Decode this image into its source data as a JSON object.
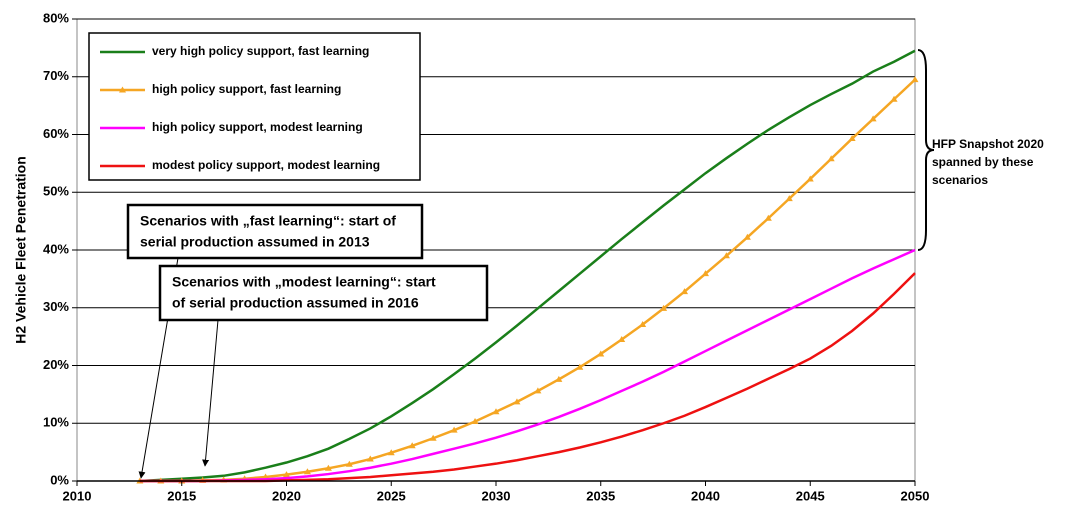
{
  "chart_data": {
    "type": "line",
    "y_label": "H2 Vehicle Fleet Penetration",
    "x": [
      2013,
      2014,
      2015,
      2016,
      2017,
      2018,
      2019,
      2020,
      2021,
      2022,
      2023,
      2024,
      2025,
      2026,
      2027,
      2028,
      2029,
      2030,
      2031,
      2032,
      2033,
      2034,
      2035,
      2036,
      2037,
      2038,
      2039,
      2040,
      2041,
      2042,
      2043,
      2044,
      2045,
      2046,
      2047,
      2048,
      2049,
      2050
    ],
    "series": [
      {
        "name": "very high policy support, fast learning",
        "color": "#1a7f1a",
        "marker": false,
        "values": [
          0,
          0.2,
          0.4,
          0.6,
          0.9,
          1.5,
          2.3,
          3.2,
          4.3,
          5.6,
          7.3,
          9.1,
          11.2,
          13.5,
          15.9,
          18.5,
          21.2,
          24.0,
          26.9,
          29.9,
          32.9,
          35.9,
          38.9,
          41.9,
          44.8,
          47.7,
          50.5,
          53.3,
          55.9,
          58.4,
          60.8,
          63.0,
          65.1,
          67.0,
          68.8,
          70.9,
          72.6,
          74.5
        ]
      },
      {
        "name": "high policy support, fast learning",
        "color": "#f5a623",
        "marker": true,
        "values": [
          0,
          0,
          0,
          0.1,
          0.2,
          0.4,
          0.7,
          1.1,
          1.6,
          2.2,
          2.9,
          3.8,
          4.9,
          6.1,
          7.4,
          8.8,
          10.3,
          12.0,
          13.7,
          15.6,
          17.6,
          19.7,
          22.0,
          24.5,
          27.1,
          29.9,
          32.8,
          35.9,
          39.0,
          42.2,
          45.5,
          48.9,
          52.3,
          55.8,
          59.3,
          62.7,
          66.1,
          69.5
        ]
      },
      {
        "name": "high policy support, modest learning",
        "color": "#ff00ff",
        "marker": false,
        "values": [
          0,
          0,
          0,
          0,
          0.1,
          0.2,
          0.3,
          0.5,
          0.8,
          1.2,
          1.7,
          2.3,
          3.0,
          3.8,
          4.7,
          5.6,
          6.5,
          7.5,
          8.6,
          9.8,
          11.1,
          12.5,
          14.0,
          15.6,
          17.2,
          18.9,
          20.7,
          22.5,
          24.3,
          26.1,
          27.9,
          29.7,
          31.5,
          33.3,
          35.1,
          36.8,
          38.4,
          40.0
        ]
      },
      {
        "name": "modest policy support, modest learning",
        "color": "#ee1111",
        "marker": false,
        "values": [
          0,
          0,
          0,
          0,
          0,
          0,
          0,
          0.1,
          0.2,
          0.3,
          0.5,
          0.7,
          1.0,
          1.3,
          1.6,
          2.0,
          2.5,
          3.0,
          3.6,
          4.3,
          5.0,
          5.8,
          6.7,
          7.7,
          8.8,
          10.0,
          11.3,
          12.8,
          14.4,
          16.0,
          17.7,
          19.4,
          21.2,
          23.4,
          26.0,
          29.0,
          32.4,
          36.0
        ]
      }
    ],
    "xlim": [
      2010,
      2050
    ],
    "xticks": [
      2010,
      2015,
      2020,
      2025,
      2030,
      2035,
      2040,
      2045,
      2050
    ],
    "ylim": [
      0,
      80
    ],
    "yticks": [
      {
        "value": 0,
        "label": "0%"
      },
      {
        "value": 10,
        "label": "10%"
      },
      {
        "value": 20,
        "label": "20%"
      },
      {
        "value": 30,
        "label": "30%"
      },
      {
        "value": 40,
        "label": "40%"
      },
      {
        "value": 50,
        "label": "50%"
      },
      {
        "value": 60,
        "label": "60%"
      },
      {
        "value": 70,
        "label": "70%"
      },
      {
        "value": 80,
        "label": "80%"
      }
    ],
    "grid": true,
    "legend": "upper left",
    "annotations": [
      [
        "Scenarios with „fast learning“: start of",
        "serial production assumed in 2013"
      ],
      [
        "Scenarios with „modest learning“: start",
        "of serial production assumed in 2016"
      ],
      [
        "HFP Snapshot 2020",
        "spanned by these",
        "scenarios"
      ]
    ]
  }
}
